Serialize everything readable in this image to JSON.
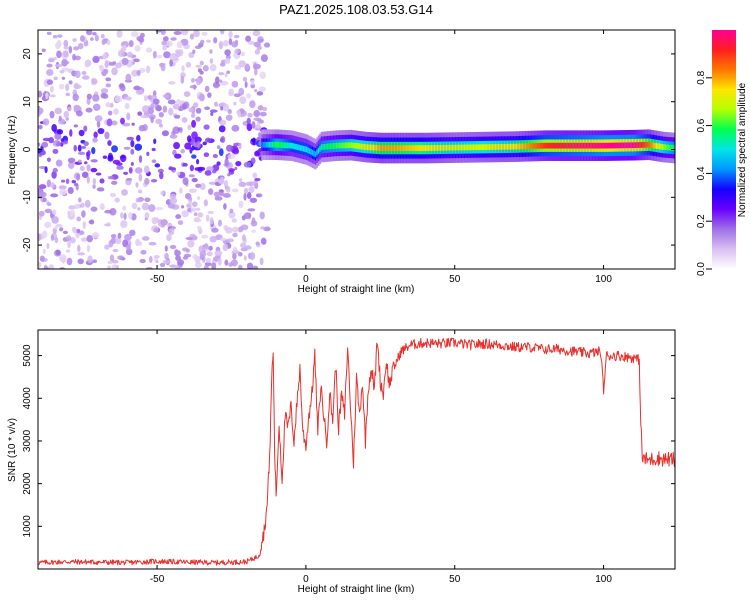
{
  "title": "PAZ1.2025.108.03.53.G14",
  "chart_data": [
    {
      "type": "heatmap",
      "title": "PAZ1.2025.108.03.53.G14",
      "xlabel": "Height of straight line (km)",
      "ylabel": "Frequency (Hz)",
      "xlim": [
        -90,
        124
      ],
      "ylim": [
        -25,
        25
      ],
      "x_ticks": [
        -50,
        0,
        50,
        100
      ],
      "x_tick_labels": [
        "-50",
        "0",
        "50",
        "100"
      ],
      "y_ticks": [
        -20,
        -10,
        0,
        10,
        20
      ],
      "y_tick_labels": [
        "-20",
        "-10",
        "0",
        "10",
        "20"
      ],
      "grid": false,
      "colorbar": {
        "label": "Normalized spectral amplitude",
        "range": [
          0.0,
          1.0
        ],
        "ticks": [
          0.0,
          0.2,
          0.4,
          0.6,
          0.8
        ],
        "tick_labels": [
          "0.0",
          "0.2",
          "0.4",
          "0.6",
          "0.8"
        ],
        "colors": [
          "#ffffff",
          "#d9bff2",
          "#a070e6",
          "#6a00ff",
          "#1400ff",
          "#0096ff",
          "#00e6e6",
          "#00ff50",
          "#b4ff00",
          "#ffe600",
          "#ff7800",
          "#ff1e1e",
          "#ff0096"
        ]
      },
      "ridge": {
        "noise_region_x": [
          -90,
          -13
        ],
        "noise_spread_hz": 25,
        "signal_x": [
          -15,
          -10,
          -5,
          0,
          3,
          5,
          10,
          15,
          20,
          25,
          30,
          40,
          50,
          60,
          70,
          80,
          90,
          100,
          110,
          115,
          120,
          124
        ],
        "signal_center_hz": [
          1.0,
          1.0,
          0.8,
          0.0,
          -1.0,
          0.5,
          0.8,
          0.9,
          0.5,
          0.3,
          0.3,
          0.3,
          0.4,
          0.5,
          0.6,
          0.8,
          0.8,
          0.8,
          0.9,
          1.0,
          0.5,
          0.3
        ],
        "signal_amplitude": [
          0.35,
          0.55,
          0.45,
          0.45,
          0.4,
          0.5,
          0.55,
          0.6,
          0.65,
          0.75,
          0.75,
          0.7,
          0.65,
          0.65,
          0.7,
          0.85,
          0.9,
          0.95,
          0.95,
          0.8,
          0.6,
          0.5
        ]
      }
    },
    {
      "type": "line",
      "xlabel": "Height of straight line (km)",
      "ylabel": "SNR (10 * v/v)",
      "xlim": [
        -90,
        124
      ],
      "ylim": [
        0,
        5600
      ],
      "x_ticks": [
        -50,
        0,
        50,
        100
      ],
      "x_tick_labels": [
        "-50",
        "0",
        "50",
        "100"
      ],
      "y_ticks": [
        1000,
        2000,
        3000,
        4000,
        5000
      ],
      "y_tick_labels": [
        "1000",
        "2000",
        "3000",
        "4000",
        "5000"
      ],
      "grid": false,
      "color": "#e8302c",
      "series": [
        {
          "x": [
            -90,
            -80,
            -70,
            -60,
            -50,
            -40,
            -30,
            -20,
            -16,
            -14,
            -13,
            -12,
            -11.5,
            -11,
            -10.5,
            -10,
            -9,
            -8,
            -7,
            -6,
            -5,
            -4,
            -3,
            -2,
            -1,
            0,
            1,
            2,
            3,
            4,
            5,
            6,
            7,
            8,
            9,
            10,
            11,
            12,
            13,
            14,
            15,
            16,
            17,
            18,
            19,
            20,
            21,
            22,
            23,
            24,
            25,
            26,
            27,
            28,
            29,
            30,
            32,
            35,
            40,
            45,
            50,
            55,
            60,
            65,
            70,
            75,
            80,
            85,
            90,
            95,
            99,
            100,
            101,
            105,
            110,
            112,
            112.5,
            113,
            115,
            118,
            120,
            124
          ],
          "values": [
            150,
            170,
            160,
            150,
            180,
            160,
            150,
            170,
            300,
            900,
            1500,
            3000,
            4500,
            5100,
            2800,
            1700,
            3400,
            2100,
            3600,
            3300,
            3800,
            3000,
            3900,
            4700,
            3200,
            2900,
            3600,
            4100,
            5000,
            3200,
            4300,
            3600,
            3000,
            4100,
            3500,
            4800,
            3300,
            4100,
            3600,
            5200,
            3800,
            2500,
            4500,
            3600,
            4400,
            3000,
            4300,
            4700,
            4200,
            5400,
            4400,
            4100,
            4900,
            4300,
            4600,
            4800,
            5100,
            5250,
            5300,
            5280,
            5300,
            5250,
            5280,
            5250,
            5200,
            5200,
            5150,
            5150,
            5100,
            5050,
            5100,
            4200,
            5000,
            5000,
            4950,
            4900,
            3400,
            2600,
            2550,
            2600,
            2580,
            2560
          ]
        }
      ]
    }
  ]
}
